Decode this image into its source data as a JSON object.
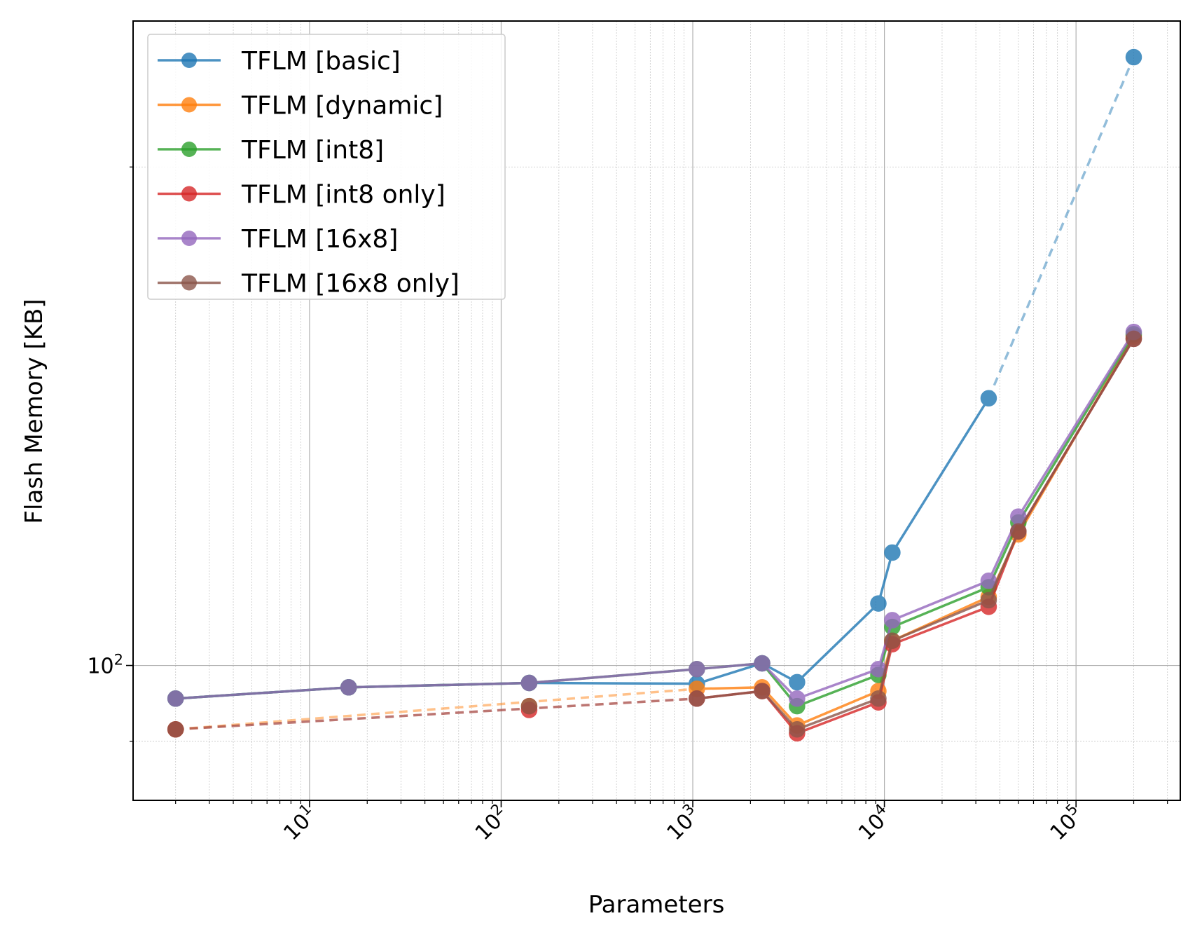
{
  "chart_data": {
    "type": "line",
    "title": "",
    "xlabel": "Parameters",
    "ylabel": "Flash Memory [KB]",
    "xscale": "log",
    "yscale": "log",
    "xlim": [
      1.2,
      350000
    ],
    "ylim": [
      82.9,
      245
    ],
    "x_ticks": [
      {
        "value": 10,
        "base": "10",
        "exp": "1"
      },
      {
        "value": 100,
        "base": "10",
        "exp": "2"
      },
      {
        "value": 1000,
        "base": "10",
        "exp": "3"
      },
      {
        "value": 10000,
        "base": "10",
        "exp": "4"
      },
      {
        "value": 100000,
        "base": "10",
        "exp": "5"
      }
    ],
    "y_ticks": [
      {
        "value": 100,
        "base": "10",
        "exp": "2"
      }
    ],
    "grid": true,
    "legend_position": "top-left",
    "x": [
      2,
      16,
      140,
      1050,
      2300,
      3500,
      9300,
      11000,
      35000,
      50000,
      200000
    ],
    "series": [
      {
        "name": "TFLM [basic]",
        "color": "#1f77b4",
        "values": [
          95.5,
          97.0,
          97.6,
          97.5,
          100.3,
          97.7,
          109.0,
          117.0,
          145.0,
          null,
          233.0
        ],
        "dashed_to_last": true
      },
      {
        "name": "TFLM [dynamic]",
        "color": "#ff7f0e",
        "values": [
          91.5,
          null,
          94.5,
          96.8,
          97.0,
          92.0,
          96.5,
          103.5,
          110.0,
          120.0,
          158.0
        ],
        "dashed_from_first": true
      },
      {
        "name": "TFLM [int8]",
        "color": "#2ca02c",
        "values": [
          95.5,
          97.0,
          97.6,
          99.5,
          100.3,
          94.5,
          98.7,
          105.5,
          111.5,
          122.0,
          158.5
        ],
        "solid": true
      },
      {
        "name": "TFLM [int8 only]",
        "color": "#d62728",
        "values": [
          91.5,
          null,
          94.0,
          95.5,
          96.5,
          91.0,
          95.0,
          103.0,
          108.5,
          120.5,
          157.5
        ],
        "dashed_from_first": true
      },
      {
        "name": "TFLM [16x8]",
        "color": "#9467bd",
        "values": [
          95.5,
          97.0,
          97.6,
          99.5,
          100.3,
          95.5,
          99.5,
          106.5,
          112.5,
          123.0,
          159.0
        ],
        "solid": true
      },
      {
        "name": "TFLM [16x8 only]",
        "color": "#8c564b",
        "values": [
          91.5,
          null,
          94.5,
          95.5,
          96.5,
          91.5,
          95.5,
          103.5,
          109.5,
          120.5,
          157.5
        ],
        "dashed_from_first": true
      }
    ]
  }
}
